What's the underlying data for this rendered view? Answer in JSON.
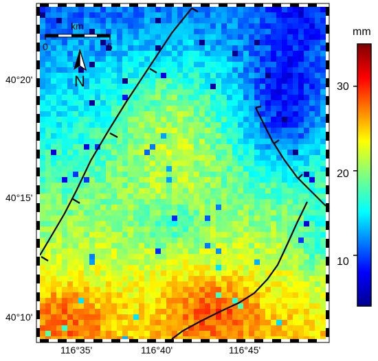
{
  "map": {
    "lat_labels": [
      "40°20'",
      "40°15'",
      "40°10'"
    ],
    "lon_labels": [
      "116°35'",
      "116°40'",
      "116°45'"
    ]
  },
  "scale_bar": {
    "unit": "km",
    "start": "0",
    "end": "5"
  },
  "north_arrow": {
    "label": "N",
    "icon": "north-arrow-icon"
  },
  "colorbar": {
    "unit": "mm",
    "ticks": [
      "30",
      "20",
      "10"
    ],
    "range": [
      4,
      35
    ],
    "colormap": "jet"
  },
  "colors": {
    "blue": "#2f6fff",
    "cyan": "#3fd0e8",
    "green": "#8fe37a",
    "yellow": "#f2ef2a",
    "orange": "#ff9a14",
    "red": "#e0261b",
    "fault_line": "#000000"
  }
}
